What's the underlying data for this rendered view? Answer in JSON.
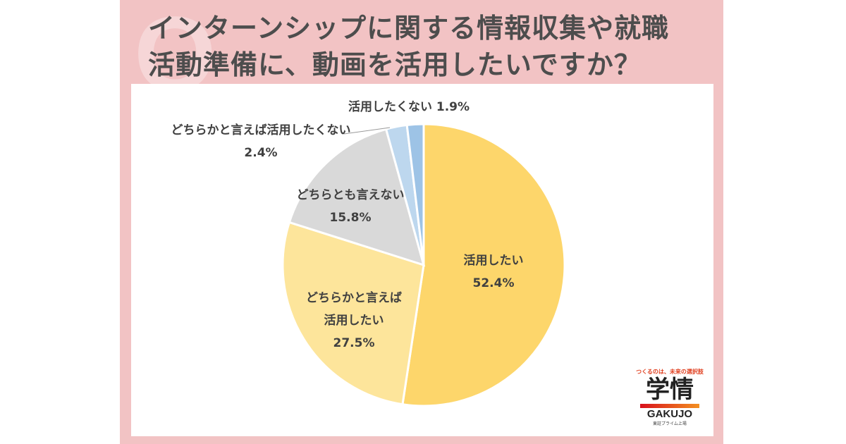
{
  "title_line1": "インターンシップに関する情報収集や就職",
  "title_line2": "活動準備に、動画を活用したいですか？",
  "q_mark": "Q",
  "chart_data": {
    "type": "pie",
    "start": "top",
    "direction": "clockwise",
    "slices": [
      {
        "label": "活用したい",
        "value": 52.4,
        "value_label": "52.4%",
        "color": "#fdd66b"
      },
      {
        "label": "どちらかと言えば活用したい",
        "value": 27.5,
        "value_label": "27.5%",
        "color": "#fde59b"
      },
      {
        "label": "どちらとも言えない",
        "value": 15.8,
        "value_label": "15.8%",
        "color": "#d9d9d9"
      },
      {
        "label": "どちらかと言えば活用したくない",
        "value": 2.4,
        "value_label": "2.4%",
        "color": "#bdd7ee"
      },
      {
        "label": "活用したくない",
        "value": 1.9,
        "value_label": "1.9%",
        "color": "#9dc3e6"
      }
    ]
  },
  "logo": {
    "tagline": "つくるのは、未来の選択肢",
    "kanji": "学情",
    "english": "GAKUJO",
    "sub": "東証プライム上場"
  }
}
